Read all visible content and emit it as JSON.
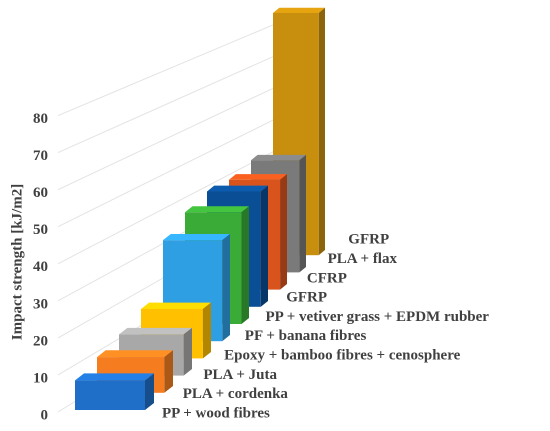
{
  "chart_data": {
    "type": "bar3d",
    "y_label": "Impact strength [kJ/m2]",
    "categories": [
      "PP + wood fibres",
      "PLA + cordenka",
      "PLA + Juta",
      "Epoxy + bamboo fibres + cenosphere",
      "PF + banana fibres",
      "PP + vetiver grass + EPDM rubber",
      "GFRP",
      "CFRP",
      "PLA + flax",
      "GFRP"
    ],
    "values": [
      8,
      10,
      12,
      15,
      32,
      37,
      40,
      40,
      43,
      98
    ],
    "colors": [
      "#1f6fc8",
      "#f57d1f",
      "#a8a8a8",
      "#ffc000",
      "#2f9fe3",
      "#3aab37",
      "#0a4f96",
      "#d9541c",
      "#7a7a7a",
      "#c88f0f"
    ],
    "ylim": [
      0,
      85
    ],
    "yticks": [
      0,
      10,
      20,
      30,
      40,
      50,
      60,
      70,
      80
    ],
    "grid": true
  }
}
